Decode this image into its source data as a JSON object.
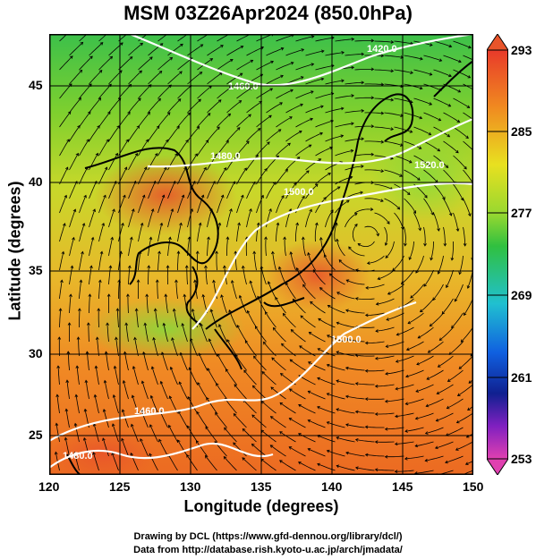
{
  "title": "MSM 03Z26Apr2024 (850.0hPa)",
  "x_axis": {
    "label": "Longitude (degrees)",
    "ticks": [
      "120",
      "125",
      "130",
      "135",
      "140",
      "145",
      "150"
    ]
  },
  "y_axis": {
    "label": "Latitude  (degrees)",
    "ticks": [
      "25",
      "30",
      "35",
      "40",
      "45"
    ]
  },
  "colorbar": {
    "ticks": [
      "293",
      "285",
      "277",
      "269",
      "261",
      "253"
    ],
    "colors": {
      "top": "#e83a2a",
      "orange": "#f08a20",
      "yellow": "#e8e020",
      "green": "#30c040",
      "cyan": "#20c0d0",
      "blue": "#1040d0",
      "navy": "#102090",
      "purple": "#a020c0",
      "bottom": "#e040b0"
    }
  },
  "contour_labels": [
    "1420.0",
    "1460.0",
    "1480.0",
    "1460.0",
    "1500.0",
    "1520.0",
    "1500.0",
    "1480.0"
  ],
  "footer": {
    "line1": "Drawing by DCL (https://www.gfd-dennou.org/library/dcl/)",
    "line2": "Data from http://database.rish.kyoto-u.ac.jp/arch/jmadata/"
  }
}
